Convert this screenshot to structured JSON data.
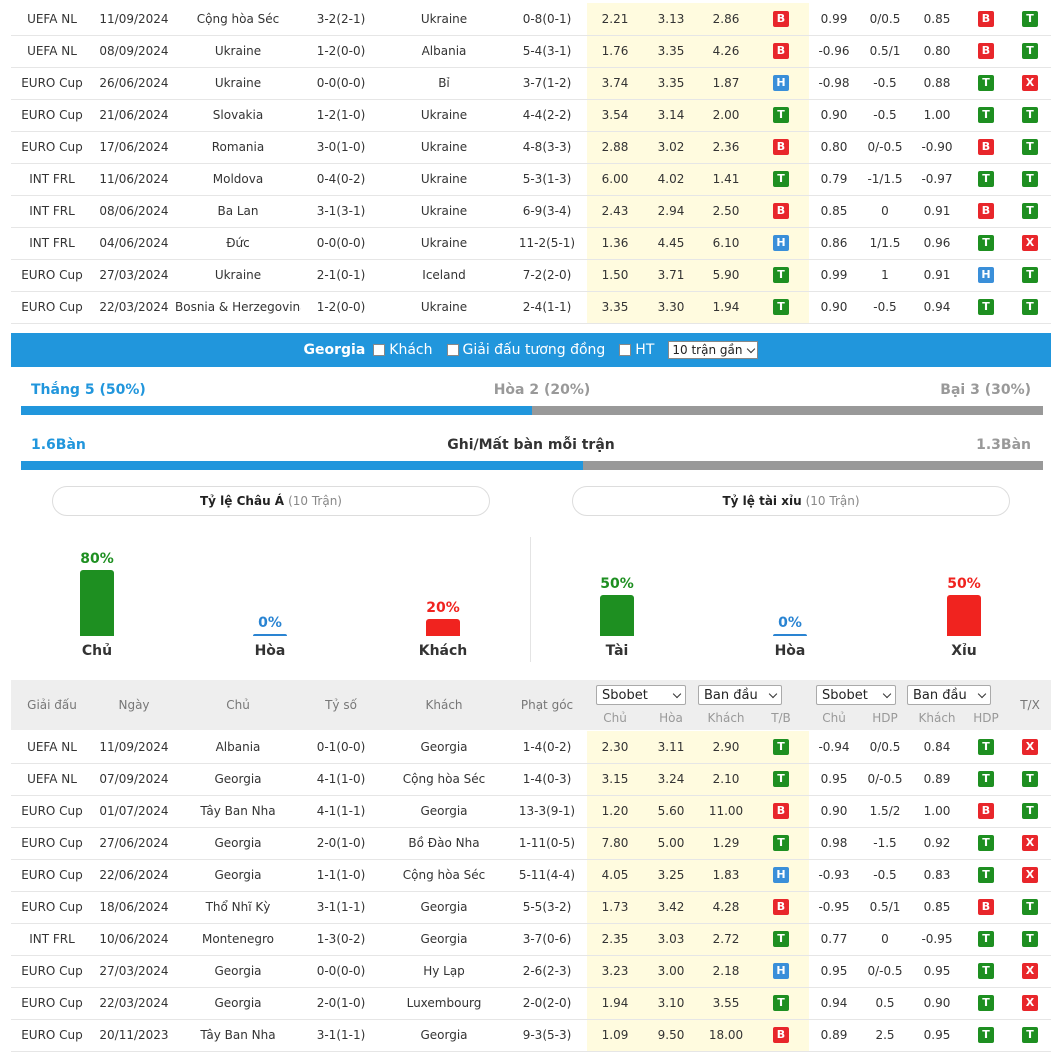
{
  "top_matches": [
    {
      "league": "UEFA NL",
      "date": "11/09/2024",
      "home": "Cộng hòa Séc",
      "score": "3-2(2-1)",
      "away": "Ukraine",
      "hl": "away",
      "corner": "0-8(0-1)",
      "o1": "2.21",
      "o2": "3.13",
      "o3": "2.86",
      "r1": "B",
      "h1": "0.99",
      "h2": "0/0.5",
      "h3": "0.85",
      "r2": "B",
      "r3": "T"
    },
    {
      "league": "UEFA NL",
      "date": "08/09/2024",
      "home": "Ukraine",
      "score": "1-2(0-0)",
      "away": "Albania",
      "hl": "home",
      "corner": "5-4(3-1)",
      "o1": "1.76",
      "o2": "3.35",
      "o3": "4.26",
      "r1": "B",
      "h1": "-0.96",
      "h2": "0.5/1",
      "h3": "0.80",
      "r2": "B",
      "r3": "T"
    },
    {
      "league": "EURO Cup",
      "date": "26/06/2024",
      "home": "Ukraine",
      "score": "0-0(0-0)",
      "away": "Bỉ",
      "hl": "home",
      "corner": "3-7(1-2)",
      "o1": "3.74",
      "o2": "3.35",
      "o3": "1.87",
      "r1": "H",
      "h1": "-0.98",
      "h2": "-0.5",
      "h3": "0.88",
      "r2": "T",
      "r3": "X"
    },
    {
      "league": "EURO Cup",
      "date": "21/06/2024",
      "home": "Slovakia",
      "score": "1-2(1-0)",
      "away": "Ukraine",
      "hl": "away",
      "corner": "4-4(2-2)",
      "o1": "3.54",
      "o2": "3.14",
      "o3": "2.00",
      "r1": "T",
      "h1": "0.90",
      "h2": "-0.5",
      "h3": "1.00",
      "r2": "T",
      "r3": "T"
    },
    {
      "league": "EURO Cup",
      "date": "17/06/2024",
      "home": "Romania",
      "score": "3-0(1-0)",
      "away": "Ukraine",
      "hl": "away",
      "corner": "4-8(3-3)",
      "o1": "2.88",
      "o2": "3.02",
      "o3": "2.36",
      "r1": "B",
      "h1": "0.80",
      "h2": "0/-0.5",
      "h3": "-0.90",
      "r2": "B",
      "r3": "T"
    },
    {
      "league": "INT FRL",
      "date": "11/06/2024",
      "home": "Moldova",
      "score": "0-4(0-2)",
      "away": "Ukraine",
      "hl": "away",
      "corner": "5-3(1-3)",
      "o1": "6.00",
      "o2": "4.02",
      "o3": "1.41",
      "r1": "T",
      "h1": "0.79",
      "h2": "-1/1.5",
      "h3": "-0.97",
      "r2": "T",
      "r3": "T"
    },
    {
      "league": "INT FRL",
      "date": "08/06/2024",
      "home": "Ba Lan",
      "score": "3-1(3-1)",
      "away": "Ukraine",
      "hl": "away",
      "corner": "6-9(3-4)",
      "o1": "2.43",
      "o2": "2.94",
      "o3": "2.50",
      "r1": "B",
      "h1": "0.85",
      "h2": "0",
      "h3": "0.91",
      "r2": "B",
      "r3": "T"
    },
    {
      "league": "INT FRL",
      "date": "04/06/2024",
      "home": "Đức",
      "score": "0-0(0-0)",
      "away": "Ukraine",
      "hl": "away",
      "corner": "11-2(5-1)",
      "o1": "1.36",
      "o2": "4.45",
      "o3": "6.10",
      "r1": "H",
      "h1": "0.86",
      "h2": "1/1.5",
      "h3": "0.96",
      "r2": "T",
      "r3": "X"
    },
    {
      "league": "EURO Cup",
      "date": "27/03/2024",
      "home": "Ukraine",
      "score": "2-1(0-1)",
      "away": "Iceland",
      "hl": "home",
      "corner": "7-2(2-0)",
      "o1": "1.50",
      "o2": "3.71",
      "o3": "5.90",
      "r1": "T",
      "h1": "0.99",
      "h2": "1",
      "h3": "0.91",
      "r2": "H",
      "r3": "T"
    },
    {
      "league": "EURO Cup",
      "date": "22/03/2024",
      "home": "Bosnia & Herzegovina",
      "score": "1-2(0-0)",
      "away": "Ukraine",
      "hl": "away",
      "corner": "2-4(1-1)",
      "o1": "3.35",
      "o2": "3.30",
      "o3": "1.94",
      "r1": "T",
      "h1": "0.90",
      "h2": "-0.5",
      "h3": "0.94",
      "r2": "T",
      "r3": "T"
    }
  ],
  "team_bar": {
    "team": "Georgia",
    "opt_away": "Khách",
    "opt_same": "Giải đấu tương đồng",
    "opt_ht": "HT",
    "select": "10 trận gần"
  },
  "wdl": {
    "win_label": "Thắng 5 (50%)",
    "draw_label": "Hòa 2 (20%)",
    "loss_label": "Bại 3 (30%)",
    "win_pct": 50
  },
  "goals": {
    "home": "1.6Bàn",
    "title": "Ghi/Mất bàn mỗi trận",
    "away": "1.3Bàn",
    "home_pct": 55
  },
  "asia": {
    "title": "Tỷ lệ Châu Á",
    "sub": "(10 Trận)",
    "home": {
      "pct": "80%",
      "label": "Chủ",
      "v": 80
    },
    "draw": {
      "pct": "0%",
      "label": "Hòa",
      "v": 0
    },
    "away": {
      "pct": "20%",
      "label": "Khách",
      "v": 20
    }
  },
  "ou": {
    "title": "Tỷ lệ tài xỉu",
    "sub": "(10 Trận)",
    "over": {
      "pct": "50%",
      "label": "Tài",
      "v": 50
    },
    "draw": {
      "pct": "0%",
      "label": "Hòa",
      "v": 0
    },
    "under": {
      "pct": "50%",
      "label": "Xỉu",
      "v": 50
    }
  },
  "header": {
    "league": "Giải đấu",
    "date": "Ngày",
    "home": "Chủ",
    "score": "Tỷ số",
    "away": "Khách",
    "corner": "Phạt góc",
    "sel1": "Sbobet",
    "sel2": "Ban đầu",
    "sel3": "Sbobet",
    "sel4": "Ban đầu",
    "s_home": "Chủ",
    "s_draw": "Hòa",
    "s_away": "Khách",
    "s_tb": "T/B",
    "h_home": "Chủ",
    "h_hdp": "HDP",
    "h_away": "Khách",
    "h_hdp2": "HDP",
    "tx": "T/X"
  },
  "bottom_matches": [
    {
      "league": "UEFA NL",
      "date": "11/09/2024",
      "home": "Albania",
      "score": "0-1(0-0)",
      "away": "Georgia",
      "hl": "away",
      "corner": "1-4(0-2)",
      "o1": "2.30",
      "o2": "3.11",
      "o3": "2.90",
      "r1": "T",
      "h1": "-0.94",
      "h2": "0/0.5",
      "h3": "0.84",
      "r2": "T",
      "r3": "X"
    },
    {
      "league": "UEFA NL",
      "date": "07/09/2024",
      "home": "Georgia",
      "score": "4-1(1-0)",
      "away": "Cộng hòa Séc",
      "hl": "home",
      "corner": "1-4(0-3)",
      "o1": "3.15",
      "o2": "3.24",
      "o3": "2.10",
      "r1": "T",
      "h1": "0.95",
      "h2": "0/-0.5",
      "h3": "0.89",
      "r2": "T",
      "r3": "T"
    },
    {
      "league": "EURO Cup",
      "date": "01/07/2024",
      "home": "Tây Ban Nha",
      "score": "4-1(1-1)",
      "away": "Georgia",
      "hl": "away",
      "corner": "13-3(9-1)",
      "o1": "1.20",
      "o2": "5.60",
      "o3": "11.00",
      "r1": "B",
      "h1": "0.90",
      "h2": "1.5/2",
      "h3": "1.00",
      "r2": "B",
      "r3": "T"
    },
    {
      "league": "EURO Cup",
      "date": "27/06/2024",
      "home": "Georgia",
      "score": "2-0(1-0)",
      "away": "Bồ Đào Nha",
      "hl": "home",
      "corner": "1-11(0-5)",
      "o1": "7.80",
      "o2": "5.00",
      "o3": "1.29",
      "r1": "T",
      "h1": "0.98",
      "h2": "-1.5",
      "h3": "0.92",
      "r2": "T",
      "r3": "X"
    },
    {
      "league": "EURO Cup",
      "date": "22/06/2024",
      "home": "Georgia",
      "score": "1-1(1-0)",
      "away": "Cộng hòa Séc",
      "hl": "home",
      "corner": "5-11(4-4)",
      "o1": "4.05",
      "o2": "3.25",
      "o3": "1.83",
      "r1": "H",
      "h1": "-0.93",
      "h2": "-0.5",
      "h3": "0.83",
      "r2": "T",
      "r3": "X"
    },
    {
      "league": "EURO Cup",
      "date": "18/06/2024",
      "home": "Thổ Nhĩ Kỳ",
      "score": "3-1(1-1)",
      "away": "Georgia",
      "hl": "away",
      "corner": "5-5(3-2)",
      "o1": "1.73",
      "o2": "3.42",
      "o3": "4.28",
      "r1": "B",
      "h1": "-0.95",
      "h2": "0.5/1",
      "h3": "0.85",
      "r2": "B",
      "r3": "T"
    },
    {
      "league": "INT FRL",
      "date": "10/06/2024",
      "home": "Montenegro",
      "score": "1-3(0-2)",
      "away": "Georgia",
      "hl": "away",
      "corner": "3-7(0-6)",
      "o1": "2.35",
      "o2": "3.03",
      "o3": "2.72",
      "r1": "T",
      "h1": "0.77",
      "h2": "0",
      "h3": "-0.95",
      "r2": "T",
      "r3": "T"
    },
    {
      "league": "EURO Cup",
      "date": "27/03/2024",
      "home": "Georgia",
      "score": "0-0(0-0)",
      "away": "Hy Lạp",
      "hl": "home",
      "corner": "2-6(2-3)",
      "o1": "3.23",
      "o2": "3.00",
      "o3": "2.18",
      "r1": "H",
      "h1": "0.95",
      "h2": "0/-0.5",
      "h3": "0.95",
      "r2": "T",
      "r3": "X"
    },
    {
      "league": "EURO Cup",
      "date": "22/03/2024",
      "home": "Georgia",
      "score": "2-0(1-0)",
      "away": "Luxembourg",
      "hl": "home",
      "corner": "2-0(2-0)",
      "o1": "1.94",
      "o2": "3.10",
      "o3": "3.55",
      "r1": "T",
      "h1": "0.94",
      "h2": "0.5",
      "h3": "0.90",
      "r2": "T",
      "r3": "X"
    },
    {
      "league": "EURO Cup",
      "date": "20/11/2023",
      "home": "Tây Ban Nha",
      "score": "3-1(1-1)",
      "away": "Georgia",
      "hl": "away",
      "corner": "9-3(5-3)",
      "o1": "1.09",
      "o2": "9.50",
      "o3": "18.00",
      "r1": "B",
      "h1": "0.89",
      "h2": "2.5",
      "h3": "0.95",
      "r2": "T",
      "r3": "T"
    }
  ]
}
